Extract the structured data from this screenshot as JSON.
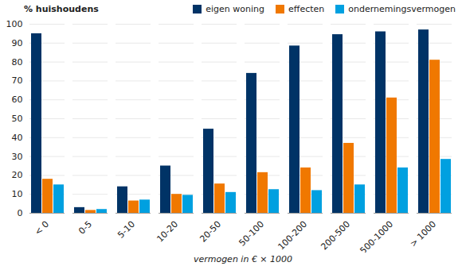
{
  "chart_data": {
    "type": "bar",
    "y_label": "% huishoudens",
    "x_label": "vermogen in € × 1000",
    "categories": [
      "< 0",
      "0-5",
      "5-10",
      "10-20",
      "20-50",
      "50-100",
      "100-200",
      "200-500",
      "500-1000",
      "> 1000"
    ],
    "series": [
      {
        "name": "eigen woning",
        "color": "#003366",
        "values": [
          95,
          3,
          14,
          25,
          44.5,
          74,
          88.5,
          94.5,
          96,
          97
        ]
      },
      {
        "name": "effecten",
        "color": "#f07800",
        "values": [
          18,
          1.5,
          6.5,
          10,
          15.5,
          21.5,
          24,
          37,
          61,
          81
        ]
      },
      {
        "name": "ondernemingsvermogen",
        "color": "#00a0e0",
        "values": [
          15,
          2,
          7,
          9.5,
          11,
          12.5,
          12,
          15,
          24,
          28.5
        ]
      }
    ],
    "ylim": [
      0,
      100
    ],
    "yticks": [
      0,
      10,
      20,
      30,
      40,
      50,
      60,
      70,
      80,
      90,
      100
    ],
    "grid": true,
    "legend": "top-right"
  }
}
